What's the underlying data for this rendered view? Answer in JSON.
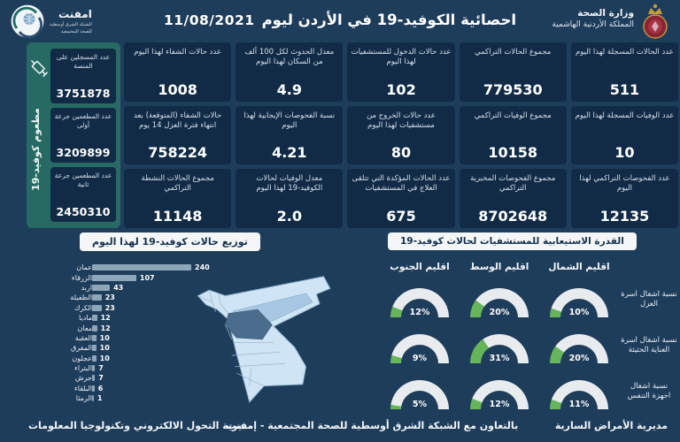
{
  "colors": {
    "background": "#1e3d5b",
    "card": "#112b47",
    "panel_teal": "#276a63",
    "chip_bg": "#f4f6f7",
    "chip_text": "#14304d",
    "bar": "#8ea6ba",
    "gauge_track": "#e8ecee",
    "gauge_fill": "#67b55b",
    "map_base": "#cfe4f5",
    "map_medium": "#a7c7e3",
    "map_dark": "#4a6d8d"
  },
  "header": {
    "ministry_title": "وزارة الصحة",
    "ministry_subtitle": "المملكة الأردنية الهاشمية",
    "page_title": "احصائية الكوفيد-19 في الأردن ليوم",
    "date": "11/08/2021",
    "emphnet_title": "امفنت",
    "emphnet_sub1": "الشبكة الشرق أوسطية",
    "emphnet_sub2": "للصحة المجتمعية"
  },
  "vaccination": {
    "vertical_label": "مطعوم كوفيد-19",
    "cards": [
      {
        "label": "عدد المسجلين على المنصة",
        "value": "3751878"
      },
      {
        "label": "عدد المطعمين جرعة أولى",
        "value": "3209899"
      },
      {
        "label": "عدد المطعمين جرعة ثانية",
        "value": "2450310"
      }
    ]
  },
  "stats": [
    {
      "label": "عدد الحالات المسجلة لهذا اليوم",
      "value": "511"
    },
    {
      "label": "مجموع الحالات التراكمي",
      "value": "779530"
    },
    {
      "label": "عدد حالات الدخول للمستشفيات لهذا اليوم",
      "value": "102"
    },
    {
      "label": "معدل الحدوث لكل 100 ألف من السكان لهذا اليوم",
      "value": "4.9"
    },
    {
      "label": "عدد حالات الشفاء لهذا اليوم",
      "value": "1008"
    },
    {
      "label": "عدد الوفيات المسجلة لهذا اليوم",
      "value": "10"
    },
    {
      "label": "مجموع الوفيات التراكمي",
      "value": "10158"
    },
    {
      "label": "عدد حالات الخروج من مستشفيات لهذا اليوم",
      "value": "80"
    },
    {
      "label": "نسبة الفحوصات الإيجابية لهذا اليوم",
      "value": "4.21"
    },
    {
      "label": "حالات الشفاء (المتوقعة) بعد انتهاء فترة العزل 14 يوم",
      "value": "758224"
    },
    {
      "label": "عدد الفحوصات التراكمي لهذا اليوم",
      "value": "12135"
    },
    {
      "label": "مجموع الفحوصات المخبرية التراكمي",
      "value": "8702648"
    },
    {
      "label": "عدد الحالات المؤكدة التي تتلقى العلاج في المستشفيات",
      "value": "675"
    },
    {
      "label": "معدل الوفيات لحالات الكوفيد-19 لهذا اليوم",
      "value": "2.0"
    },
    {
      "label": "مجموع الحالات النشطة التراكمي",
      "value": "11148"
    }
  ],
  "distribution": {
    "title": "توزيع حالات كوفيد-19 لهذا اليوم",
    "max_value": 240,
    "bars": [
      {
        "name": "عمان",
        "value": 240
      },
      {
        "name": "الزرقاء",
        "value": 107
      },
      {
        "name": "اربد",
        "value": 43
      },
      {
        "name": "الطفيلة",
        "value": 23
      },
      {
        "name": "الكرك",
        "value": 23
      },
      {
        "name": "ماديا",
        "value": 12
      },
      {
        "name": "معان",
        "value": 12
      },
      {
        "name": "العقبة",
        "value": 10
      },
      {
        "name": "المفرق",
        "value": 10
      },
      {
        "name": "عجلون",
        "value": 10
      },
      {
        "name": "البتراء",
        "value": 7
      },
      {
        "name": "جرش",
        "value": 7
      },
      {
        "name": "البلقاء",
        "value": 6
      },
      {
        "name": "الرمثا",
        "value": 1
      }
    ]
  },
  "capacity": {
    "title": "القدرة الاستيعابية للمستشفيات لحالات كوفيد-19",
    "regions": [
      "اقليم الشمال",
      "اقليم الوسط",
      "اقليم الجنوب"
    ],
    "rows": [
      {
        "label": "نسبة اشغال اسرة العزل",
        "cells": [
          {
            "pct": 10,
            "text": "10%"
          },
          {
            "pct": 20,
            "text": "20%"
          },
          {
            "pct": 12,
            "text": "12%"
          }
        ]
      },
      {
        "label": "نسبة اشغال اسرة العناية الحثيثة",
        "cells": [
          {
            "pct": 20,
            "text": "20%"
          },
          {
            "pct": 31,
            "text": "31%"
          },
          {
            "pct": 9,
            "text": "9%"
          }
        ]
      },
      {
        "label": "نسبة اشغال اجهزة التنفس",
        "cells": [
          {
            "pct": 11,
            "text": "11%"
          },
          {
            "pct": 12,
            "text": "12%"
          },
          {
            "pct": 5,
            "text": "5%"
          }
        ]
      }
    ]
  },
  "footer": {
    "right": "مديرية الأمراض السارية",
    "center": "بالتعاون مع الشبكة الشرق أوسطية للصحة المجتمعية - إمفنت",
    "left": "مديرية التحول الالكتروني وتكنولوجيا المعلومات"
  },
  "chart_data": [
    {
      "type": "bar",
      "orientation": "horizontal",
      "title": "توزيع حالات كوفيد-19 لهذا اليوم",
      "categories": [
        "عمان",
        "الزرقاء",
        "اربد",
        "الطفيلة",
        "الكرك",
        "ماديا",
        "معان",
        "العقبة",
        "المفرق",
        "عجلون",
        "البتراء",
        "جرش",
        "البلقاء",
        "الرمثا"
      ],
      "values": [
        240,
        107,
        43,
        23,
        23,
        12,
        12,
        10,
        10,
        10,
        7,
        7,
        6,
        1
      ],
      "xlim": [
        0,
        240
      ],
      "data_labels": true,
      "grid": false
    },
    {
      "type": "gauge",
      "title": "القدرة الاستيعابية للمستشفيات لحالات كوفيد-19",
      "columns": [
        "اقليم الشمال",
        "اقليم الوسط",
        "اقليم الجنوب"
      ],
      "series": [
        {
          "name": "نسبة اشغال اسرة العزل",
          "values": [
            10,
            20,
            12
          ]
        },
        {
          "name": "نسبة اشغال اسرة العناية الحثيثة",
          "values": [
            20,
            31,
            9
          ]
        },
        {
          "name": "نسبة اشغال اجهزة التنفس",
          "values": [
            11,
            12,
            5
          ]
        }
      ],
      "unit": "%",
      "range": [
        0,
        100
      ]
    }
  ]
}
